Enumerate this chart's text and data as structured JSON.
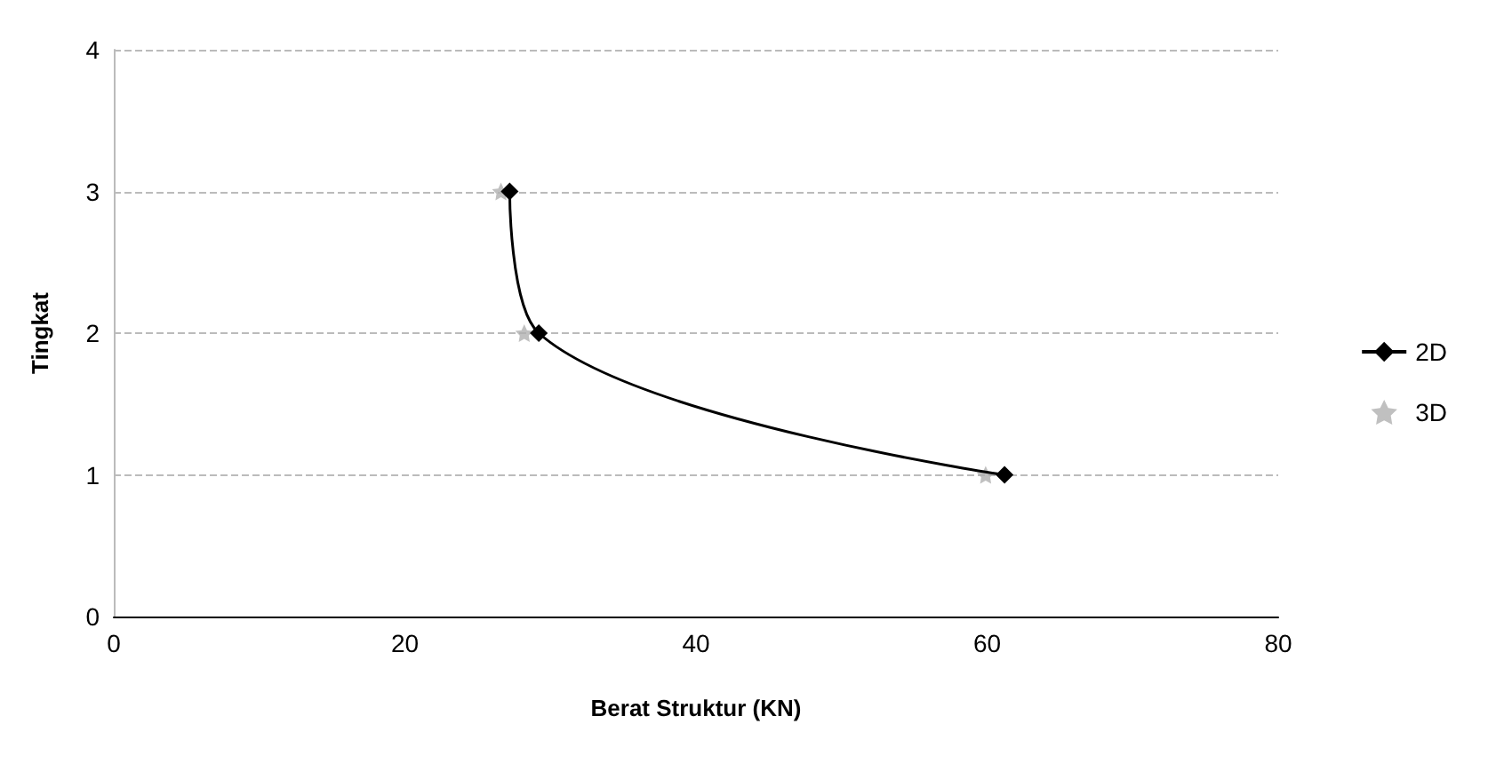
{
  "chart_data": {
    "type": "line",
    "xlabel": "Berat Struktur (KN)",
    "ylabel": "Tingkat",
    "xlim": [
      0,
      80
    ],
    "xticks": [
      0,
      20,
      40,
      60,
      80
    ],
    "ylim": [
      0,
      4
    ],
    "yticks": [
      0,
      1,
      2,
      3,
      4
    ],
    "grid": "y",
    "legend": "right",
    "series": [
      {
        "name": "2D",
        "color": "#000000",
        "marker": "diamond",
        "line_style": "solid",
        "x": [
          61.2,
          29.2,
          27.2
        ],
        "values": [
          1,
          2,
          3
        ]
      },
      {
        "name": "3D",
        "type": "scatter",
        "color": "#b0b0b0",
        "marker": "star",
        "x": [
          59.9,
          28.2,
          26.6
        ],
        "values": [
          1,
          2,
          3
        ]
      }
    ]
  }
}
